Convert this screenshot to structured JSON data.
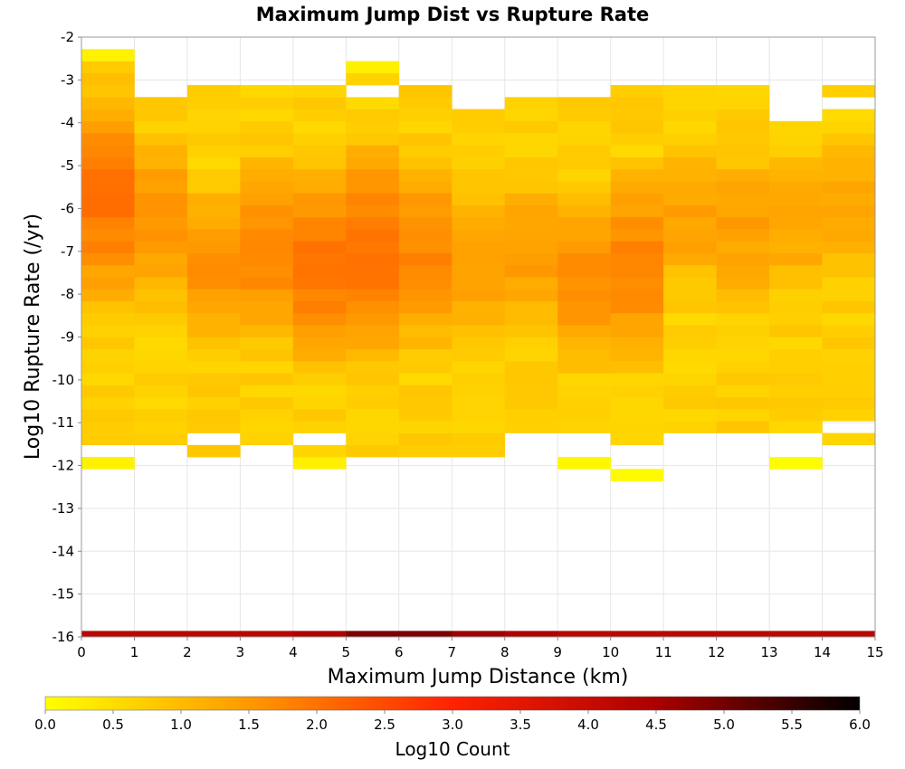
{
  "chart_data": {
    "type": "heatmap",
    "title": "Maximum Jump Dist vs Rupture Rate",
    "xlabel": "Maximum Jump Distance (km)",
    "ylabel": "Log10 Rupture Rate (/yr)",
    "xlim": [
      0,
      15
    ],
    "ylim": [
      -16,
      -2
    ],
    "x_ticks": [
      "0",
      "1",
      "2",
      "3",
      "4",
      "5",
      "6",
      "7",
      "8",
      "9",
      "10",
      "11",
      "12",
      "13",
      "14",
      "15"
    ],
    "y_ticks": [
      "-2",
      "-3",
      "-4",
      "-5",
      "-6",
      "-7",
      "-8",
      "-9",
      "-10",
      "-11",
      "-12",
      "-13",
      "-14",
      "-15",
      "-16"
    ],
    "x_bin_width": 1,
    "y_bin_width": 0.28,
    "y_bin_start": -16,
    "colorbar": {
      "label": "Log10 Count",
      "range": [
        0.0,
        6.0
      ],
      "ticks": [
        "0.0",
        "0.5",
        "1.0",
        "1.5",
        "2.0",
        "2.5",
        "3.0",
        "3.5",
        "4.0",
        "4.5",
        "5.0",
        "5.5",
        "6.0"
      ],
      "colors": [
        "#ffff00",
        "#ff9900",
        "#ff2200",
        "#aa0000",
        "#000000"
      ]
    },
    "grid": true,
    "columns": [
      {
        "x": 0,
        "y_min": -12.1,
        "y_max": -2.4,
        "gaps": [
          [
            -11.8,
            -11.5
          ]
        ],
        "edge": 0.15,
        "peak": 1.95,
        "peak_y": -5.8,
        "spread": 1.3
      },
      {
        "x": 1,
        "y_min": -11.6,
        "y_max": -3.3,
        "gaps": [],
        "edge": 0.2,
        "peak": 1.6,
        "peak_y": -6.3,
        "spread": 1.1
      },
      {
        "x": 2,
        "y_min": -11.9,
        "y_max": -3.0,
        "gaps": [
          [
            -11.6,
            -11.3
          ]
        ],
        "edge": 0.15,
        "peak": 1.6,
        "peak_y": -7.3,
        "spread": 1.0
      },
      {
        "x": 3,
        "y_min": -11.6,
        "y_max": -3.0,
        "gaps": [],
        "edge": 0.15,
        "peak": 1.75,
        "peak_y": -7.0,
        "spread": 1.1
      },
      {
        "x": 4,
        "y_min": -12.1,
        "y_max": -3.0,
        "gaps": [
          [
            -11.6,
            -11.3
          ]
        ],
        "edge": 0.15,
        "peak": 1.95,
        "peak_y": -7.3,
        "spread": 1.2
      },
      {
        "x": 5,
        "y_min": -11.9,
        "y_max": -2.7,
        "gaps": [
          [
            -3.3,
            -3.0
          ]
        ],
        "edge": 0.25,
        "peak": 2.0,
        "peak_y": -7.0,
        "spread": 1.25
      },
      {
        "x": 6,
        "y_min": -11.9,
        "y_max": -3.0,
        "gaps": [],
        "edge": 0.2,
        "peak": 1.75,
        "peak_y": -7.0,
        "spread": 1.2
      },
      {
        "x": 7,
        "y_min": -11.9,
        "y_max": -3.6,
        "gaps": [],
        "edge": 0.2,
        "peak": 1.5,
        "peak_y": -7.2,
        "spread": 1.0
      },
      {
        "x": 8,
        "y_min": -11.3,
        "y_max": -3.3,
        "gaps": [],
        "edge": 0.2,
        "peak": 1.45,
        "peak_y": -7.0,
        "spread": 1.0
      },
      {
        "x": 9,
        "y_min": -12.1,
        "y_max": -3.3,
        "gaps": [
          [
            -11.8,
            -11.3
          ]
        ],
        "edge": 0.15,
        "peak": 1.7,
        "peak_y": -7.6,
        "spread": 1.05
      },
      {
        "x": 10,
        "y_min": -12.4,
        "y_max": -3.0,
        "gaps": [
          [
            -12.1,
            -11.6
          ]
        ],
        "edge": 0.15,
        "peak": 1.75,
        "peak_y": -7.3,
        "spread": 1.15
      },
      {
        "x": 11,
        "y_min": -11.3,
        "y_max": -3.0,
        "gaps": [],
        "edge": 0.1,
        "peak": 1.4,
        "peak_y": -6.1,
        "spread": 1.0
      },
      {
        "x": 12,
        "y_min": -11.3,
        "y_max": -3.0,
        "gaps": [],
        "edge": 0.1,
        "peak": 1.4,
        "peak_y": -6.5,
        "spread": 1.05
      },
      {
        "x": 13,
        "y_min": -12.1,
        "y_max": -3.9,
        "gaps": [
          [
            -11.8,
            -11.3
          ]
        ],
        "edge": 0.15,
        "peak": 1.35,
        "peak_y": -6.3,
        "spread": 1.0
      },
      {
        "x": 14,
        "y_min": -11.6,
        "y_max": -3.0,
        "gaps": [
          [
            -11.3,
            -11.0
          ],
          [
            -3.6,
            -3.3
          ]
        ],
        "edge": 0.15,
        "peak": 1.25,
        "peak_y": -6.0,
        "spread": 1.0
      }
    ],
    "bottom_band": {
      "y": -16,
      "height": 0.14,
      "values": [
        4.2,
        4.2,
        4.2,
        4.2,
        4.4,
        4.9,
        4.9,
        4.6,
        4.4,
        4.2,
        4.2,
        4.2,
        4.2,
        4.2,
        4.2
      ]
    }
  }
}
